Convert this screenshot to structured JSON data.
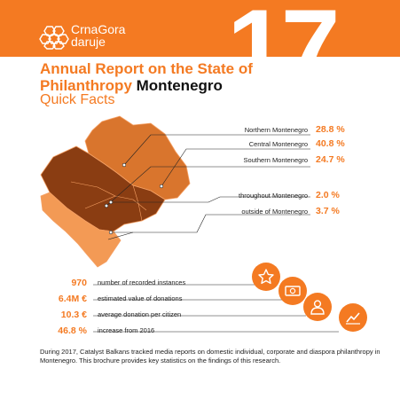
{
  "header": {
    "brand_line1": "CrnaGora",
    "brand_line2": "daruje",
    "big_number": "17"
  },
  "title": {
    "line1": "Annual Report on the State of",
    "line2_orange": "Philanthropy",
    "line2_dark": "Montenegro",
    "subtitle": "Quick Facts"
  },
  "regions": [
    {
      "label": "Northern Montenegro",
      "value": "28.8 %"
    },
    {
      "label": "Central Montenegro",
      "value": "40.8 %"
    },
    {
      "label": "Southern Montenegro",
      "value": "24.7 %"
    },
    {
      "label": "throughout Montenegro",
      "value": "2.0 %"
    },
    {
      "label": "outside of Montenegro",
      "value": "3.7 %"
    }
  ],
  "facts": [
    {
      "value": "970",
      "label": "number of recorded instances",
      "icon": "star-icon"
    },
    {
      "value": "6.4M €",
      "label": "estimated value of donations",
      "icon": "banknote-icon"
    },
    {
      "value": "10.3 €",
      "label": "average donation per citizen",
      "icon": "person-icon"
    },
    {
      "value": "46.8 %",
      "label": "increase from 2016",
      "icon": "trend-chart-icon"
    }
  ],
  "description": "During 2017, Catalyst Balkans tracked media reports on domestic individual, corporate and diaspora philanthropy in Montenegro. This brochure provides key statistics on the findings of this research.",
  "colors": {
    "accent": "#f47a22",
    "map_light": "#f39a55",
    "map_mid": "#d9752d",
    "map_dark": "#8a3d12"
  }
}
